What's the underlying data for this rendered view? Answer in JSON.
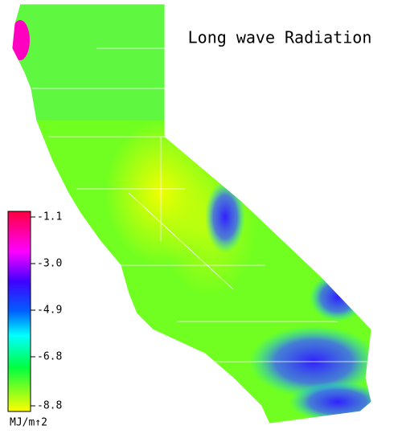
{
  "title": "Long wave Radiation",
  "colorbar": {
    "label": "MJ/m↑2",
    "lim": [
      -8.8,
      -1.1
    ],
    "ticks": [
      -1.1,
      {
        "value": -3,
        "label": "-3.0"
      },
      -4.9,
      -6.8,
      -8.8
    ]
  }
}
